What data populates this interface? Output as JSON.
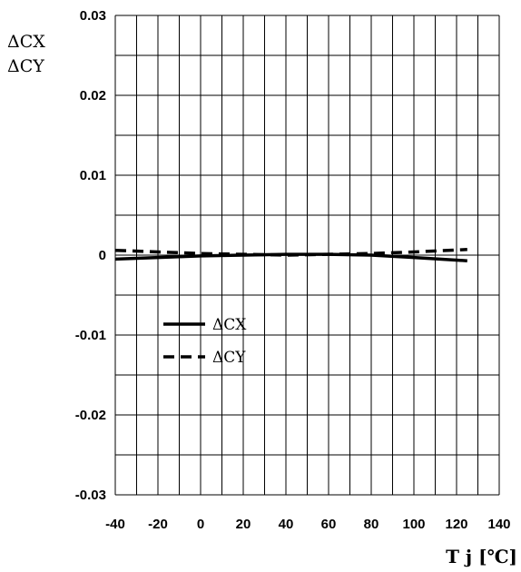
{
  "chart_data": {
    "type": "line",
    "title": "",
    "xlabel": "T j [℃]",
    "ylabel": [
      "ΔCX",
      "ΔCY"
    ],
    "xlim": [
      -40,
      140
    ],
    "ylim": [
      -0.03,
      0.03
    ],
    "xticks": [
      -40,
      -20,
      0,
      20,
      40,
      60,
      80,
      100,
      120,
      140
    ],
    "yticks": [
      0.03,
      0.02,
      0.01,
      0,
      -0.01,
      -0.02,
      -0.03
    ],
    "xtick_labels": [
      "-40",
      "-20",
      "0",
      "20",
      "40",
      "60",
      "80",
      "100",
      "120",
      "140"
    ],
    "ytick_labels": [
      "0.03",
      "0.02",
      "0.01",
      "0",
      "-0.01",
      "-0.02",
      "-0.03"
    ],
    "grid": true,
    "legend_position": "lower-left",
    "series": [
      {
        "name": "ΔCX",
        "style": "solid",
        "x": [
          -40,
          -20,
          0,
          20,
          40,
          60,
          80,
          100,
          125
        ],
        "y": [
          -0.0005,
          -0.0003,
          -0.0001,
          0.0,
          0.0001,
          0.0001,
          0.0,
          -0.0003,
          -0.0007
        ]
      },
      {
        "name": "ΔCY",
        "style": "dashed",
        "x": [
          -40,
          -20,
          0,
          20,
          40,
          60,
          80,
          100,
          125
        ],
        "y": [
          0.0006,
          0.0004,
          0.0002,
          0.0001,
          0.0,
          0.0001,
          0.0002,
          0.0004,
          0.0007
        ]
      }
    ]
  }
}
